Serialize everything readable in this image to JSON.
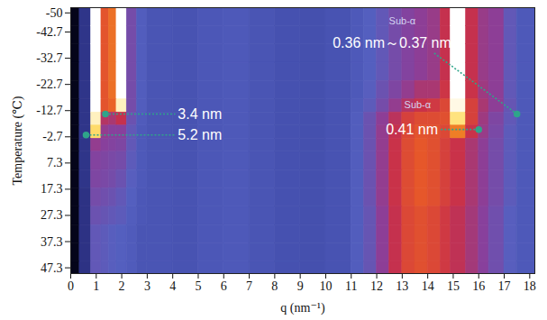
{
  "chart_data": {
    "type": "heatmap",
    "xlabel": "q (nm⁻¹)",
    "ylabel": "Temperature (℃)",
    "xlim": [
      0,
      18.2
    ],
    "xticks": [
      0,
      1,
      2,
      3,
      4,
      5,
      6,
      7,
      8,
      9,
      10,
      11,
      12,
      13,
      14,
      15,
      16,
      17,
      18
    ],
    "ylim": [
      -52,
      49.5
    ],
    "yticks": [
      -50,
      -42.7,
      -32.7,
      -22.7,
      -12.7,
      -2.7,
      7.3,
      17.3,
      27.3,
      37.3,
      47.3
    ],
    "q_bins": [
      0,
      0.35,
      0.8,
      1.2,
      1.5,
      1.8,
      2.2,
      2.6,
      3,
      4,
      5,
      6,
      7,
      8,
      9,
      10,
      11,
      11.5,
      12,
      12.5,
      13,
      13.5,
      14,
      14.5,
      14.9,
      15.5,
      16,
      16.4,
      17,
      17.5,
      18.2
    ],
    "temperature_bins": [
      -52,
      -45,
      -38,
      -31,
      -24,
      -17,
      -12,
      -7,
      -2,
      3,
      10,
      17,
      24,
      31,
      38,
      45,
      49.5
    ],
    "zlim": [
      0,
      1
    ],
    "cells": [
      [
        0,
        0.15,
        1.0,
        0.65,
        0.7,
        1.0,
        0.4,
        0.32,
        0.28,
        0.27,
        0.29,
        0.3,
        0.28,
        0.26,
        0.25,
        0.27,
        0.3,
        0.33,
        0.36,
        0.4,
        0.43,
        0.45,
        0.47,
        0.55,
        1.0,
        0.55,
        0.47,
        0.45,
        0.36,
        0.3
      ],
      [
        0,
        0.15,
        1.0,
        0.65,
        0.7,
        1.0,
        0.4,
        0.32,
        0.28,
        0.27,
        0.29,
        0.3,
        0.28,
        0.26,
        0.25,
        0.27,
        0.3,
        0.33,
        0.36,
        0.4,
        0.43,
        0.45,
        0.47,
        0.55,
        1.0,
        0.55,
        0.47,
        0.45,
        0.36,
        0.3
      ],
      [
        0,
        0.15,
        1.0,
        0.65,
        0.7,
        1.0,
        0.4,
        0.32,
        0.28,
        0.27,
        0.29,
        0.3,
        0.28,
        0.26,
        0.25,
        0.27,
        0.3,
        0.33,
        0.36,
        0.4,
        0.43,
        0.45,
        0.47,
        0.55,
        1.0,
        0.55,
        0.47,
        0.45,
        0.36,
        0.3
      ],
      [
        0,
        0.15,
        1.0,
        0.65,
        0.7,
        1.0,
        0.4,
        0.32,
        0.28,
        0.27,
        0.29,
        0.3,
        0.28,
        0.26,
        0.25,
        0.27,
        0.3,
        0.33,
        0.36,
        0.4,
        0.43,
        0.45,
        0.47,
        0.55,
        1.0,
        0.55,
        0.47,
        0.45,
        0.36,
        0.3
      ],
      [
        0,
        0.15,
        1.0,
        0.65,
        0.7,
        1.0,
        0.4,
        0.32,
        0.28,
        0.27,
        0.29,
        0.3,
        0.28,
        0.26,
        0.25,
        0.27,
        0.3,
        0.34,
        0.38,
        0.42,
        0.46,
        0.5,
        0.5,
        0.57,
        1.0,
        0.56,
        0.48,
        0.45,
        0.36,
        0.3
      ],
      [
        0,
        0.15,
        1.0,
        0.65,
        0.68,
        0.95,
        0.4,
        0.32,
        0.28,
        0.27,
        0.29,
        0.3,
        0.28,
        0.26,
        0.25,
        0.27,
        0.31,
        0.35,
        0.4,
        0.46,
        0.52,
        0.56,
        0.58,
        0.62,
        0.98,
        0.6,
        0.5,
        0.45,
        0.37,
        0.3
      ],
      [
        0,
        0.15,
        0.95,
        0.52,
        0.5,
        0.55,
        0.38,
        0.31,
        0.28,
        0.27,
        0.29,
        0.3,
        0.28,
        0.26,
        0.25,
        0.27,
        0.32,
        0.38,
        0.45,
        0.53,
        0.6,
        0.63,
        0.63,
        0.64,
        0.9,
        0.6,
        0.48,
        0.42,
        0.36,
        0.3
      ],
      [
        0,
        0.15,
        0.88,
        0.46,
        0.44,
        0.44,
        0.36,
        0.3,
        0.28,
        0.27,
        0.29,
        0.3,
        0.28,
        0.26,
        0.25,
        0.27,
        0.32,
        0.38,
        0.46,
        0.55,
        0.62,
        0.65,
        0.64,
        0.62,
        0.72,
        0.56,
        0.47,
        0.41,
        0.35,
        0.3
      ],
      [
        0,
        0.15,
        0.46,
        0.44,
        0.43,
        0.42,
        0.36,
        0.3,
        0.28,
        0.27,
        0.29,
        0.3,
        0.28,
        0.26,
        0.25,
        0.27,
        0.32,
        0.38,
        0.46,
        0.56,
        0.63,
        0.66,
        0.64,
        0.6,
        0.56,
        0.5,
        0.45,
        0.4,
        0.35,
        0.3
      ],
      [
        0,
        0.15,
        0.43,
        0.42,
        0.41,
        0.4,
        0.35,
        0.3,
        0.28,
        0.27,
        0.29,
        0.3,
        0.28,
        0.26,
        0.25,
        0.27,
        0.32,
        0.38,
        0.46,
        0.56,
        0.63,
        0.66,
        0.64,
        0.6,
        0.56,
        0.5,
        0.45,
        0.4,
        0.35,
        0.3
      ],
      [
        0,
        0.15,
        0.42,
        0.41,
        0.4,
        0.38,
        0.34,
        0.3,
        0.28,
        0.27,
        0.29,
        0.3,
        0.28,
        0.26,
        0.25,
        0.27,
        0.32,
        0.38,
        0.46,
        0.56,
        0.63,
        0.66,
        0.64,
        0.6,
        0.56,
        0.5,
        0.45,
        0.4,
        0.35,
        0.3
      ],
      [
        0,
        0.14,
        0.4,
        0.39,
        0.38,
        0.36,
        0.33,
        0.29,
        0.28,
        0.27,
        0.29,
        0.3,
        0.28,
        0.26,
        0.25,
        0.27,
        0.32,
        0.38,
        0.46,
        0.56,
        0.63,
        0.66,
        0.64,
        0.6,
        0.56,
        0.5,
        0.45,
        0.4,
        0.35,
        0.3
      ],
      [
        0,
        0.14,
        0.38,
        0.37,
        0.36,
        0.35,
        0.32,
        0.29,
        0.28,
        0.27,
        0.29,
        0.3,
        0.28,
        0.26,
        0.25,
        0.27,
        0.32,
        0.37,
        0.45,
        0.55,
        0.62,
        0.64,
        0.62,
        0.58,
        0.54,
        0.49,
        0.44,
        0.39,
        0.34,
        0.3
      ],
      [
        0,
        0.14,
        0.36,
        0.35,
        0.34,
        0.33,
        0.31,
        0.28,
        0.28,
        0.27,
        0.29,
        0.3,
        0.28,
        0.26,
        0.25,
        0.27,
        0.32,
        0.37,
        0.45,
        0.55,
        0.62,
        0.64,
        0.62,
        0.58,
        0.54,
        0.49,
        0.44,
        0.39,
        0.34,
        0.3
      ],
      [
        0,
        0.14,
        0.36,
        0.35,
        0.34,
        0.33,
        0.31,
        0.28,
        0.28,
        0.27,
        0.29,
        0.3,
        0.28,
        0.26,
        0.25,
        0.27,
        0.32,
        0.37,
        0.45,
        0.55,
        0.62,
        0.64,
        0.62,
        0.58,
        0.54,
        0.49,
        0.44,
        0.39,
        0.34,
        0.3
      ],
      [
        0,
        0.14,
        0.36,
        0.35,
        0.34,
        0.33,
        0.31,
        0.28,
        0.28,
        0.27,
        0.29,
        0.3,
        0.28,
        0.26,
        0.25,
        0.27,
        0.32,
        0.37,
        0.45,
        0.55,
        0.62,
        0.64,
        0.62,
        0.58,
        0.54,
        0.49,
        0.44,
        0.39,
        0.34,
        0.3
      ]
    ],
    "annotations": [
      {
        "text": "3.4 nm",
        "q": 1.36,
        "temperature": -11.4,
        "line_q": 4.1,
        "line_temperature": -11.4,
        "text_q": 4.2,
        "text_temperature": -11.4,
        "text_anchor": "start"
      },
      {
        "text": "5.2 nm",
        "q": 0.6,
        "temperature": -3.4,
        "line_q": 4.1,
        "line_temperature": -3.4,
        "text_q": 4.2,
        "text_temperature": -3.4,
        "text_anchor": "start"
      },
      {
        "note": "Sub-α",
        "note_q": 13.6,
        "note_temperature": -14.8,
        "text": "0.41 nm",
        "q": 16.0,
        "temperature": -5.5,
        "line_q": 14.5,
        "line_temperature": -5.5,
        "text_q": 14.4,
        "text_temperature": -5.5,
        "text_anchor": "end"
      },
      {
        "note": "Sub-α",
        "note_q": 13.0,
        "note_temperature": -47,
        "text": "0.36 nm～0.37 nm",
        "q": 17.5,
        "temperature": -11.4,
        "line_q": 14.2,
        "line_temperature": -35,
        "text_q": 12.6,
        "text_temperature": -38.5,
        "text_anchor": "middle"
      }
    ]
  }
}
